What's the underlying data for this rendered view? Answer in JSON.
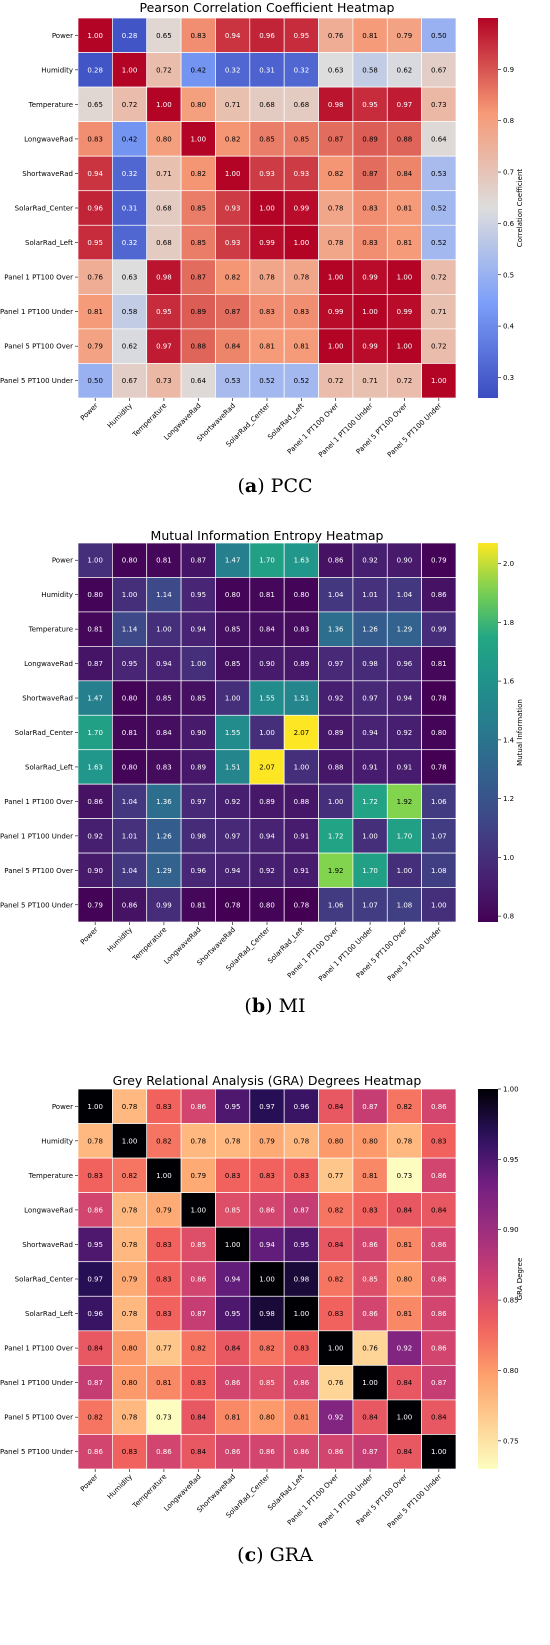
{
  "variables": [
    "Power",
    "Humidity",
    "Temperature",
    "LongwaveRad",
    "ShortwaveRad",
    "SolarRad_Center",
    "SolarRad_Left",
    "Panel 1 PT100 Over",
    "Panel 1 PT100 Under",
    "Panel 5 PT100 Over",
    "Panel 5 PT100 Under"
  ],
  "chart_data": [
    {
      "type": "heatmap",
      "title": "Pearson Correlation Coefficient Heatmap",
      "colorbar_label": "Correlation Coefficient",
      "colormap": "coolwarm",
      "vmin": 0.26,
      "vmax": 1.0,
      "colorbar_ticks": [
        0.3,
        0.4,
        0.5,
        0.6,
        0.7,
        0.8,
        0.9
      ],
      "caption_letter": "a",
      "caption_text": "PCC",
      "values": [
        [
          1.0,
          0.28,
          0.65,
          0.83,
          0.94,
          0.96,
          0.95,
          0.76,
          0.81,
          0.79,
          0.5
        ],
        [
          0.28,
          1.0,
          0.72,
          0.42,
          0.32,
          0.31,
          0.32,
          0.63,
          0.58,
          0.62,
          0.67
        ],
        [
          0.65,
          0.72,
          1.0,
          0.8,
          0.71,
          0.68,
          0.68,
          0.98,
          0.95,
          0.97,
          0.73
        ],
        [
          0.83,
          0.42,
          0.8,
          1.0,
          0.82,
          0.85,
          0.85,
          0.87,
          0.89,
          0.88,
          0.64
        ],
        [
          0.94,
          0.32,
          0.71,
          0.82,
          1.0,
          0.93,
          0.93,
          0.82,
          0.87,
          0.84,
          0.53
        ],
        [
          0.96,
          0.31,
          0.68,
          0.85,
          0.93,
          1.0,
          0.99,
          0.78,
          0.83,
          0.81,
          0.52
        ],
        [
          0.95,
          0.32,
          0.68,
          0.85,
          0.93,
          0.99,
          1.0,
          0.78,
          0.83,
          0.81,
          0.52
        ],
        [
          0.76,
          0.63,
          0.98,
          0.87,
          0.82,
          0.78,
          0.78,
          1.0,
          0.99,
          1.0,
          0.72
        ],
        [
          0.81,
          0.58,
          0.95,
          0.89,
          0.87,
          0.83,
          0.83,
          0.99,
          1.0,
          0.99,
          0.71
        ],
        [
          0.79,
          0.62,
          0.97,
          0.88,
          0.84,
          0.81,
          0.81,
          1.0,
          0.99,
          1.0,
          0.72
        ],
        [
          0.5,
          0.67,
          0.73,
          0.64,
          0.53,
          0.52,
          0.52,
          0.72,
          0.71,
          0.72,
          1.0
        ]
      ]
    },
    {
      "type": "heatmap",
      "title": "Mutual Information Entropy Heatmap",
      "colorbar_label": "Mutual Information",
      "colormap": "viridis",
      "vmin": 0.78,
      "vmax": 2.07,
      "colorbar_ticks": [
        0.8,
        1.0,
        1.2,
        1.4,
        1.6,
        1.8,
        2.0
      ],
      "caption_letter": "b",
      "caption_text": "MI",
      "values": [
        [
          1.0,
          0.8,
          0.81,
          0.87,
          1.47,
          1.7,
          1.63,
          0.86,
          0.92,
          0.9,
          0.79
        ],
        [
          0.8,
          1.0,
          1.14,
          0.95,
          0.8,
          0.81,
          0.8,
          1.04,
          1.01,
          1.04,
          0.86
        ],
        [
          0.81,
          1.14,
          1.0,
          0.94,
          0.85,
          0.84,
          0.83,
          1.36,
          1.26,
          1.29,
          0.99
        ],
        [
          0.87,
          0.95,
          0.94,
          1.0,
          0.85,
          0.9,
          0.89,
          0.97,
          0.98,
          0.96,
          0.81
        ],
        [
          1.47,
          0.8,
          0.85,
          0.85,
          1.0,
          1.55,
          1.51,
          0.92,
          0.97,
          0.94,
          0.78
        ],
        [
          1.7,
          0.81,
          0.84,
          0.9,
          1.55,
          1.0,
          2.07,
          0.89,
          0.94,
          0.92,
          0.8
        ],
        [
          1.63,
          0.8,
          0.83,
          0.89,
          1.51,
          2.07,
          1.0,
          0.88,
          0.91,
          0.91,
          0.78
        ],
        [
          0.86,
          1.04,
          1.36,
          0.97,
          0.92,
          0.89,
          0.88,
          1.0,
          1.72,
          1.92,
          1.06
        ],
        [
          0.92,
          1.01,
          1.26,
          0.98,
          0.97,
          0.94,
          0.91,
          1.72,
          1.0,
          1.7,
          1.07
        ],
        [
          0.9,
          1.04,
          1.29,
          0.96,
          0.94,
          0.92,
          0.91,
          1.92,
          1.7,
          1.0,
          1.08
        ],
        [
          0.79,
          0.86,
          0.99,
          0.81,
          0.78,
          0.8,
          0.78,
          1.06,
          1.07,
          1.08,
          1.0
        ]
      ]
    },
    {
      "type": "heatmap",
      "title": "Grey Relational Analysis (GRA) Degrees Heatmap",
      "colorbar_label": "GRA Degree",
      "colormap": "magma_r",
      "vmin": 0.73,
      "vmax": 1.0,
      "colorbar_ticks": [
        0.75,
        0.8,
        0.85,
        0.9,
        0.95,
        1.0
      ],
      "caption_letter": "c",
      "caption_text": "GRA",
      "values": [
        [
          1.0,
          0.78,
          0.83,
          0.86,
          0.95,
          0.97,
          0.96,
          0.84,
          0.87,
          0.82,
          0.86
        ],
        [
          0.78,
          1.0,
          0.82,
          0.78,
          0.78,
          0.79,
          0.78,
          0.8,
          0.8,
          0.78,
          0.83
        ],
        [
          0.83,
          0.82,
          1.0,
          0.79,
          0.83,
          0.83,
          0.83,
          0.77,
          0.81,
          0.73,
          0.86
        ],
        [
          0.86,
          0.78,
          0.79,
          1.0,
          0.85,
          0.86,
          0.87,
          0.82,
          0.83,
          0.84,
          0.84
        ],
        [
          0.95,
          0.78,
          0.83,
          0.85,
          1.0,
          0.94,
          0.95,
          0.84,
          0.86,
          0.81,
          0.86
        ],
        [
          0.97,
          0.79,
          0.83,
          0.86,
          0.94,
          1.0,
          0.98,
          0.82,
          0.85,
          0.8,
          0.86
        ],
        [
          0.96,
          0.78,
          0.83,
          0.87,
          0.95,
          0.98,
          1.0,
          0.83,
          0.86,
          0.81,
          0.86
        ],
        [
          0.84,
          0.8,
          0.77,
          0.82,
          0.84,
          0.82,
          0.83,
          1.0,
          0.76,
          0.92,
          0.86
        ],
        [
          0.87,
          0.8,
          0.81,
          0.83,
          0.86,
          0.85,
          0.86,
          0.76,
          1.0,
          0.84,
          0.87
        ],
        [
          0.82,
          0.78,
          0.73,
          0.84,
          0.81,
          0.8,
          0.81,
          0.92,
          0.84,
          1.0,
          0.84
        ],
        [
          0.86,
          0.83,
          0.86,
          0.84,
          0.86,
          0.86,
          0.86,
          0.86,
          0.87,
          0.84,
          1.0
        ]
      ]
    }
  ]
}
